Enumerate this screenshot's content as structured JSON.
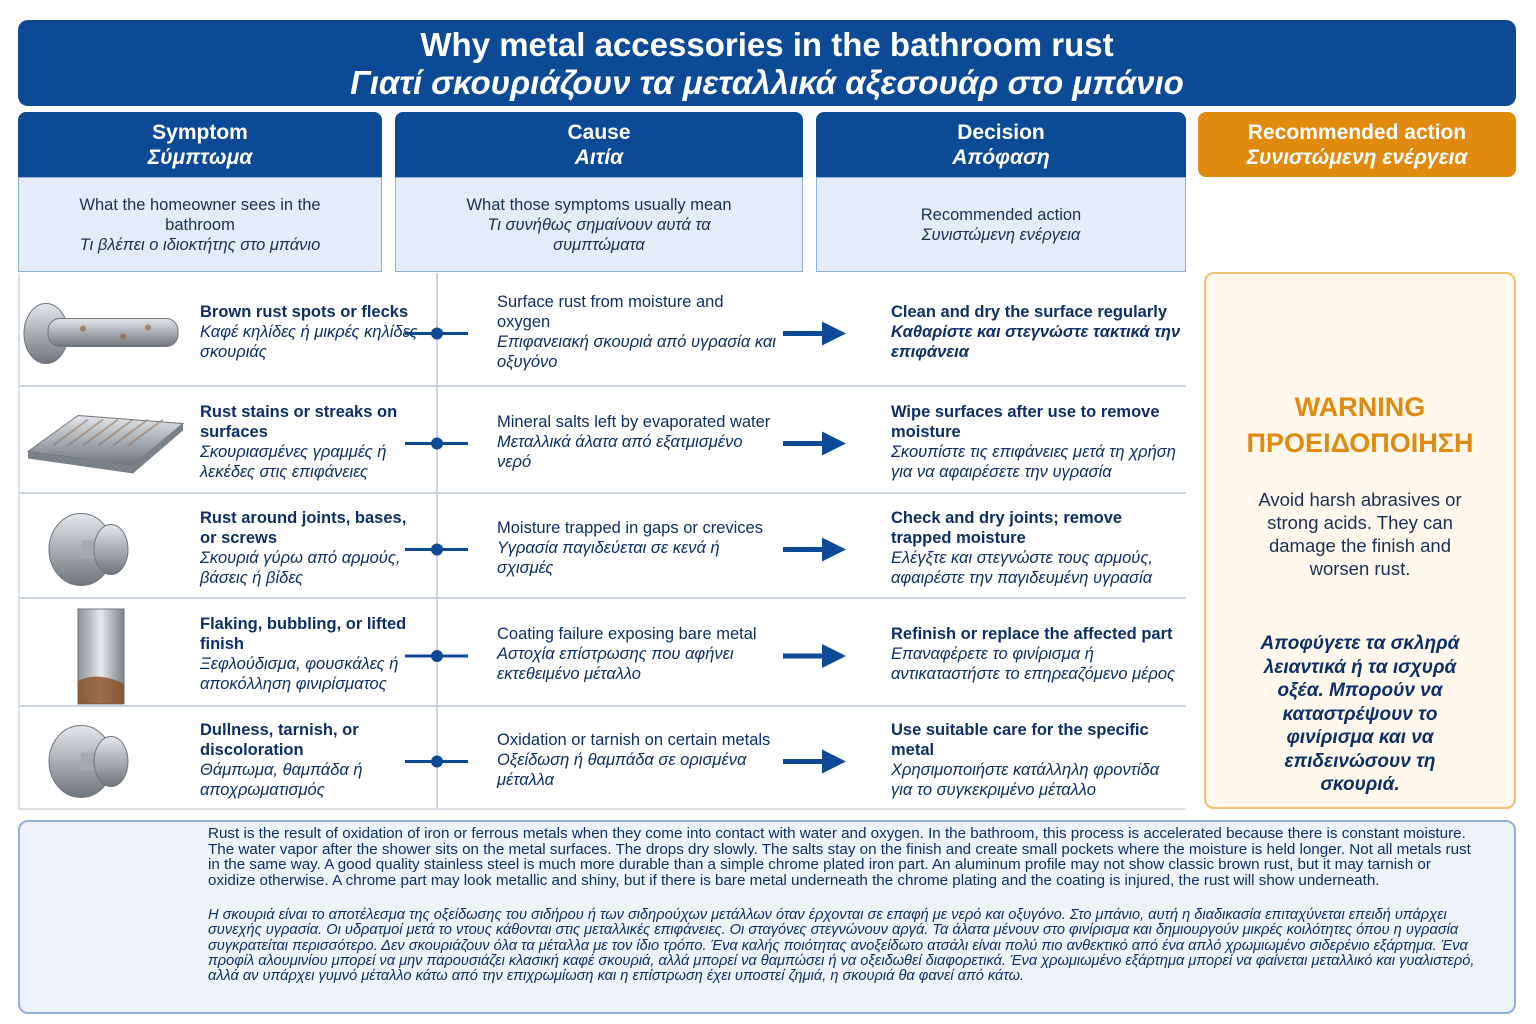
{
  "header": {
    "title_en": "Why metal accessories in the bathroom rust",
    "title_el": "Γιατί σκουριάζουν τα μεταλλικά αξεσουάρ στο μπάνιο"
  },
  "columns": [
    {
      "title_en": "Symptom",
      "title_el": "Σύμπτωμα",
      "sub_en": "What the homeowner sees in the bathroom",
      "sub_el": "Τι βλέπει ο ιδιοκτήτης στο μπάνιο"
    },
    {
      "title_en": "Cause",
      "title_el": "Αιτία",
      "sub_en": "What those symptoms usually mean",
      "sub_el": "Τι συνήθως σημαίνουν αυτά τα συμπτώματα"
    },
    {
      "title_en": "Decision",
      "title_el": "Απόφαση",
      "sub_en": "Recommended action",
      "sub_el": "Συνιστώμενη ενέργεια"
    },
    {
      "title_en": "Recommended action",
      "title_el": "Συνιστώμενη ενέργεια"
    }
  ],
  "rows": [
    {
      "symptom_en": "Brown rust spots or flecks",
      "symptom_el": "Καφέ κηλίδες ή μικρές κηλίδες σκουριάς",
      "cause_en": "Surface rust from moisture and oxygen",
      "cause_el": "Επιφανειακή σκουριά από υγρασία και οξυγόνο",
      "decision_en": "Clean and dry the surface regularly",
      "decision_el": "Καθαρίστε και στεγνώστε τακτικά την επιφάνεια"
    },
    {
      "symptom_en": "Rust stains or streaks on surfaces",
      "symptom_el": "Σκουριασμένες γραμμές ή λεκέδες στις επιφάνειες",
      "cause_en": "Mineral salts left by evaporated water",
      "cause_el": "Μεταλλικά άλατα από εξατμισμένο νερό",
      "decision_en": "Wipe surfaces after use to remove moisture",
      "decision_el": "Σκουπίστε τις επιφάνειες μετά τη χρήση για να αφαιρέσετε την υγρασία"
    },
    {
      "symptom_en": "Rust around joints, bases, or screws",
      "symptom_el": "Σκουριά γύρω από αρμούς, βάσεις ή βίδες",
      "cause_en": "Moisture trapped in gaps or crevices",
      "cause_el": "Υγρασία παγιδεύεται σε κενά ή σχισμές",
      "decision_en": "Check and dry joints; remove trapped moisture",
      "decision_el": "Ελέγξτε και στεγνώστε τους αρμούς, αφαιρέστε την παγιδευμένη υγρασία"
    },
    {
      "symptom_en": "Flaking, bubbling, or lifted finish",
      "symptom_el": "Ξεφλούδισμα, φουσκάλες ή αποκόλληση φινιρίσματος",
      "cause_en": "Coating failure exposing bare metal",
      "cause_el": "Αστοχία επίστρωσης που αφήνει εκτεθειμένο μέταλλο",
      "decision_en": "Refinish or replace the affected part",
      "decision_el": "Επαναφέρετε το φινίρισμα ή αντικαταστήστε το επηρεαζόμενο μέρος"
    },
    {
      "symptom_en": "Dullness, tarnish, or discoloration",
      "symptom_el": "Θάμπωμα, θαμπάδα ή αποχρωματισμός",
      "cause_en": "Oxidation or tarnish on certain metals",
      "cause_el": "Οξείδωση ή θαμπάδα σε ορισμένα μέταλλα",
      "decision_en": "Use suitable care for the specific metal",
      "decision_el": "Χρησιμοποιήστε κατάλληλη φροντίδα για το συγκεκριμένο μέταλλο"
    }
  ],
  "warning": {
    "title_en": "WARNING",
    "title_el": "ΠΡΟΕΙΔΟΠΟΙΗΣΗ",
    "text_en": "Avoid harsh abrasives or strong acids. They can damage the finish and worsen rust.",
    "text_el": "Αποφύγετε τα σκληρά λειαντικά ή τα ισχυρά οξέα. Μπορούν να καταστρέψουν το φινίρισμα και να επιδεινώσουν τη σκουριά."
  },
  "footer": {
    "text_en": "Rust is the result of oxidation of iron or ferrous metals when they come into contact with water and oxygen. In the bathroom, this process is accelerated because there is constant moisture. The water vapor after the shower sits on the metal surfaces. The drops dry slowly. The salts stay on the finish and create small pockets where the moisture is held longer. Not all metals rust in the same way. A good quality stainless steel is much more durable than a simple chrome plated iron part. An aluminum profile may not show classic brown rust, but it may tarnish or oxidize otherwise. A chrome part may look metallic and shiny, but if there is bare metal underneath the chrome plating and the coating is injured, the rust will show underneath.",
    "text_el": "Η σκουριά είναι το αποτέλεσμα της οξείδωσης του σιδήρου ή των σιδηρούχων μετάλλων όταν έρχονται σε επαφή με νερό και οξυγόνο. Στο μπάνιο, αυτή η διαδικασία επιταχύνεται επειδή υπάρχει συνεχής υγρασία. Οι υδρατμοί μετά το ντους κάθονται στις μεταλλικές επιφάνειες. Οι σταγόνες στεγνώνουν αργά. Τα άλατα μένουν στο φινίρισμα και δημιουργούν μικρές κοιλότητες όπου η υγρασία συγκρατείται περισσότερο. Δεν σκουριάζουν όλα τα μέταλλα με τον ίδιο τρόπο. Ένα καλής ποιότητας ανοξείδωτο ατσάλι είναι πολύ πιο ανθεκτικό από ένα απλό χρωμιωμένο σιδερένιο εξάρτημα. Ένα προφίλ αλουμινίου μπορεί να μην παρουσιάζει κλασική καφέ σκουριά, αλλά μπορεί να θαμπώσει ή να οξειδωθεί διαφορετικά. Ένα χρωμιωμένο εξάρτημα μπορεί να φαίνεται μεταλλικό και γυαλιστερό, αλλά αν υπάρχει γυμνό μέταλλο κάτω από την επιχρωμίωση και η επίστρωση έχει υποστεί ζημιά, η σκουριά θα φανεί από κάτω."
  }
}
